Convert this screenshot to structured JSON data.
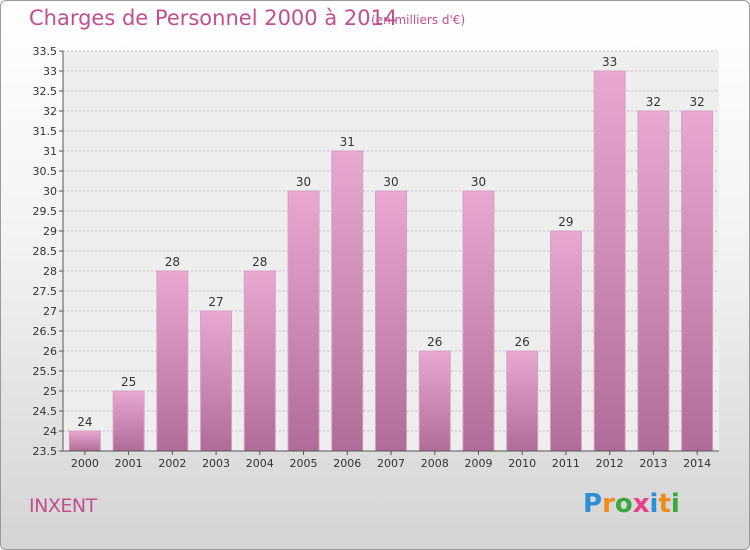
{
  "title": "Charges de Personnel 2000 à 2014",
  "unit": "(en milliers d'€)",
  "entity": "INXENT",
  "logo": {
    "letters": [
      "P",
      "r",
      "o",
      "x",
      "i",
      "t",
      "i"
    ],
    "colors": [
      "#2e8fd6",
      "#f08a1c",
      "#3aa83a",
      "#e83e8c",
      "#2e8fd6",
      "#f08a1c",
      "#3aa83a"
    ]
  },
  "chart_data": {
    "type": "bar",
    "categories": [
      "2000",
      "2001",
      "2002",
      "2003",
      "2004",
      "2005",
      "2006",
      "2007",
      "2008",
      "2009",
      "2010",
      "2011",
      "2012",
      "2013",
      "2014"
    ],
    "values": [
      24,
      25,
      28,
      27,
      28,
      30,
      31,
      30,
      26,
      30,
      26,
      29,
      33,
      32,
      32
    ],
    "data_labels": [
      "24",
      "25",
      "28",
      "27",
      "28",
      "30",
      "31",
      "30",
      "26",
      "30",
      "26",
      "29",
      "33",
      "32",
      "32"
    ],
    "yticks": [
      "23.5",
      "24",
      "24.5",
      "25",
      "25.5",
      "26",
      "26.5",
      "27",
      "27.5",
      "28",
      "28.5",
      "29",
      "29.5",
      "30",
      "30.5",
      "31",
      "31.5",
      "32",
      "32.5",
      "33",
      "33.5"
    ],
    "ylim": [
      23.5,
      33.5
    ],
    "grid": true,
    "bar_color": "#c77aa6"
  }
}
